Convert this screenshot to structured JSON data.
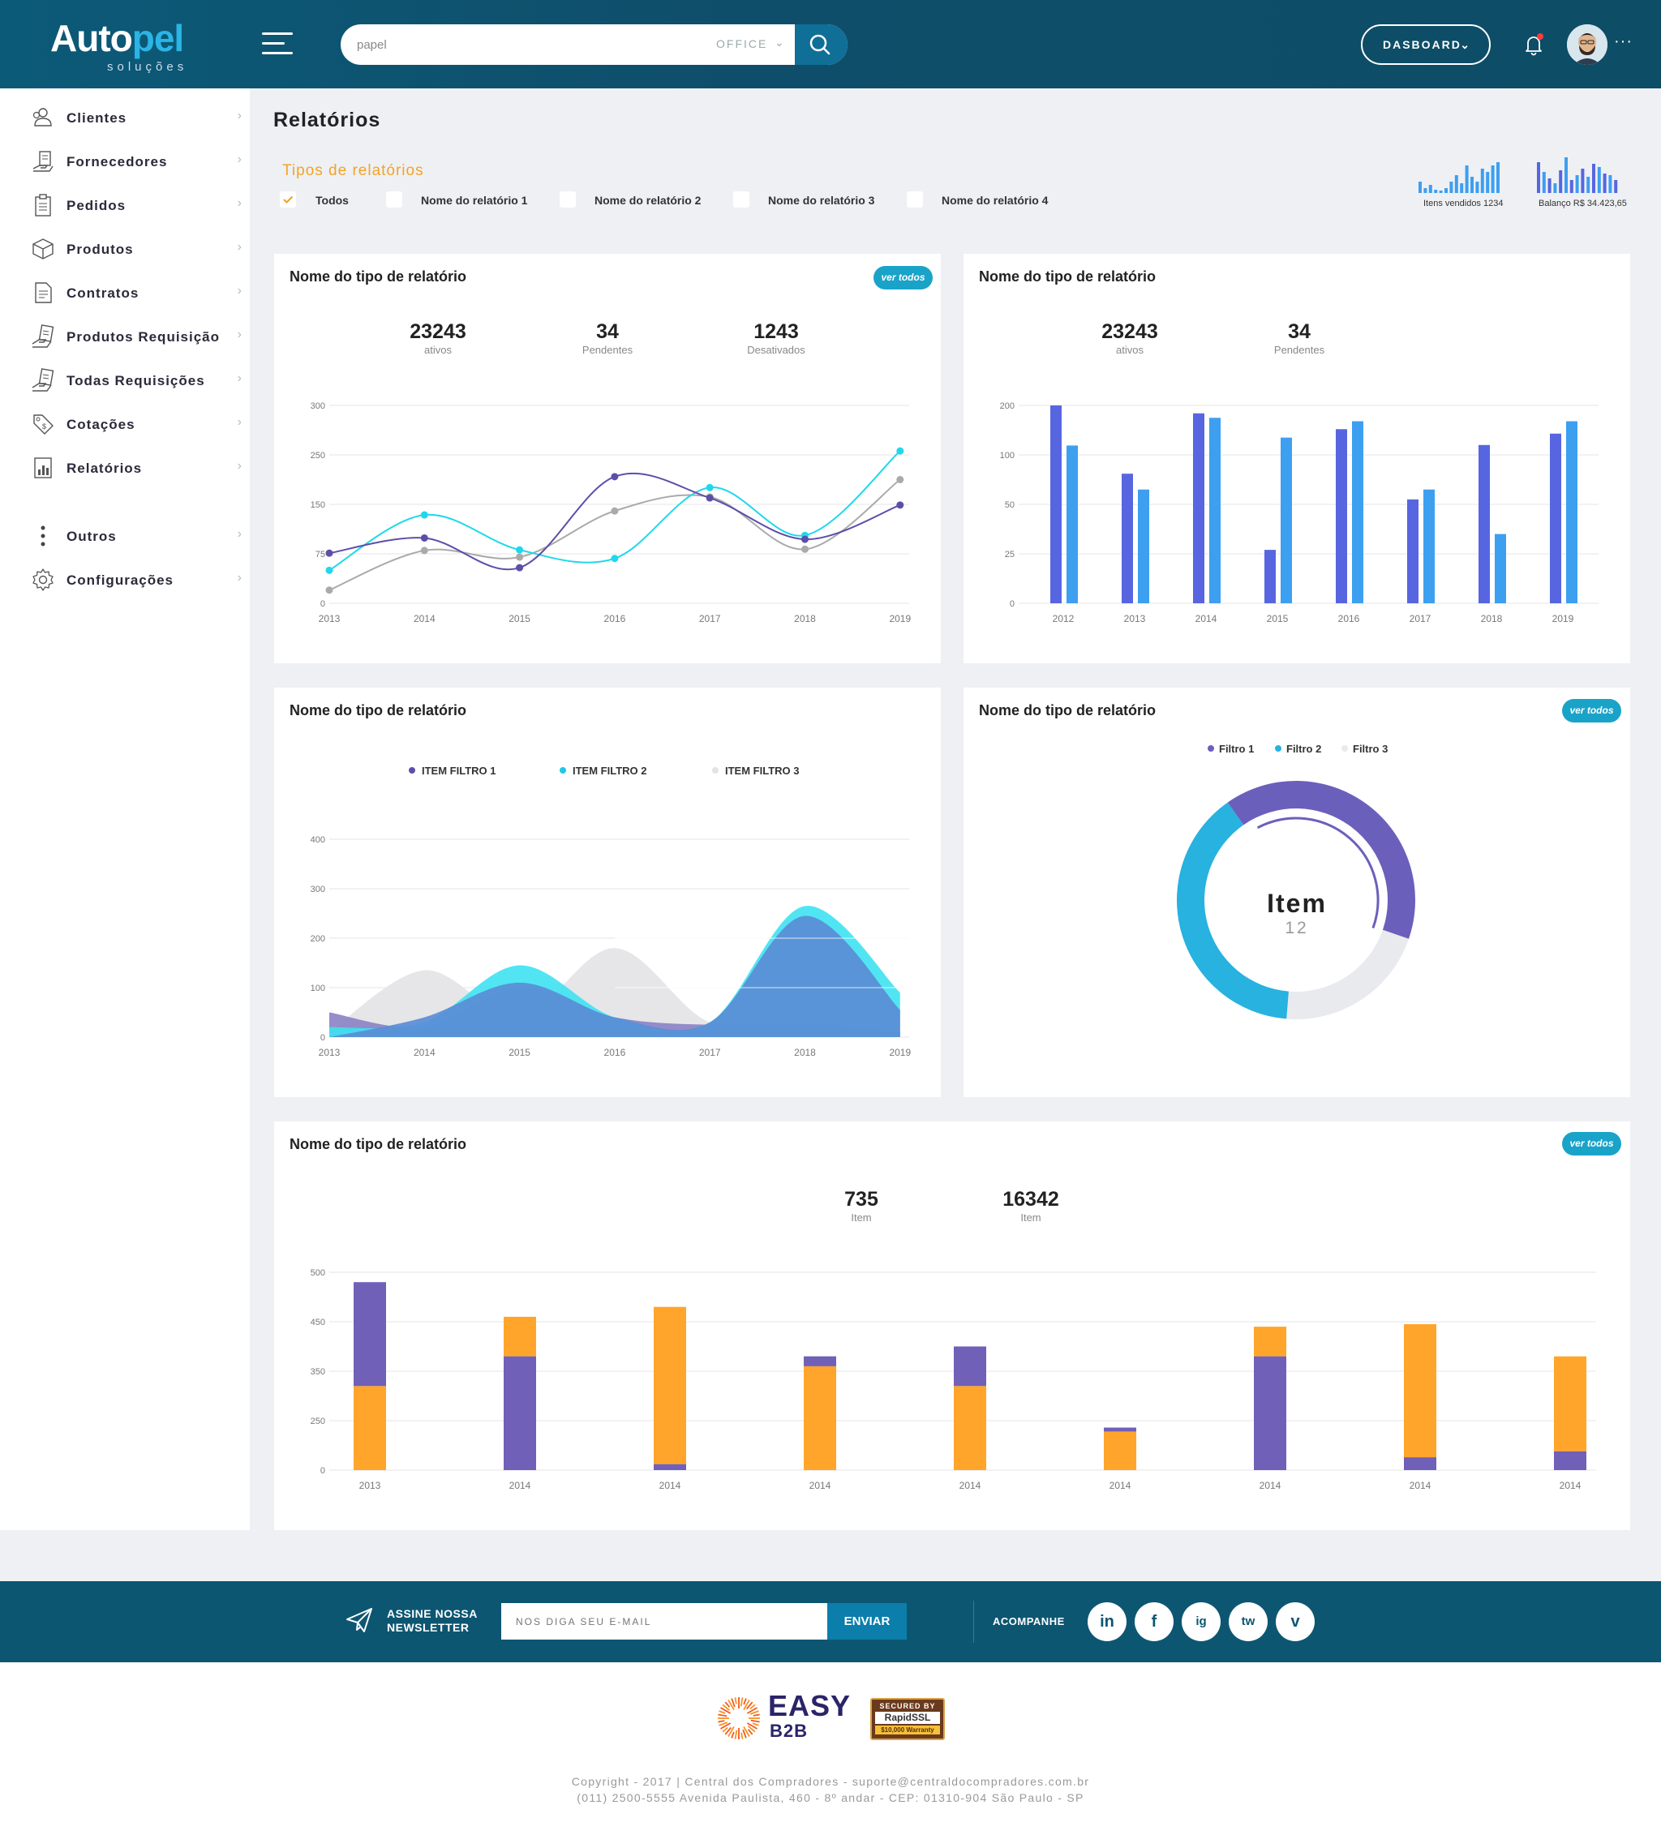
{
  "header": {
    "logo_part1": "Auto",
    "logo_part2": "pel",
    "logo_sub": "soluções",
    "search_value": "papel",
    "search_category": "OFFICE",
    "dashboard_label": "DASBOARD",
    "colors": {
      "primary": "#0b5a78",
      "accent": "#2bb4e6"
    }
  },
  "sidebar": {
    "items": [
      {
        "label": "Clientes",
        "icon": "users-icon"
      },
      {
        "label": "Fornecedores",
        "icon": "supplier-icon"
      },
      {
        "label": "Pedidos",
        "icon": "clipboard-icon"
      },
      {
        "label": "Produtos",
        "icon": "box-icon"
      },
      {
        "label": "Contratos",
        "icon": "document-icon"
      },
      {
        "label": "Produtos Requisição",
        "icon": "hand-document-icon"
      },
      {
        "label": "Todas Requisições",
        "icon": "hand-document-icon"
      },
      {
        "label": "Cotações",
        "icon": "price-tag-icon"
      },
      {
        "label": "Relatórios",
        "icon": "report-icon"
      },
      {
        "label": "Outros",
        "icon": "vertical-dots-icon"
      },
      {
        "label": "Configurações",
        "icon": "gear-icon"
      }
    ]
  },
  "page": {
    "title": "Relatórios",
    "types_label": "Tipos de relatórios",
    "filters": [
      {
        "label": "Todos",
        "checked": true
      },
      {
        "label": "Nome do relatório 1",
        "checked": false
      },
      {
        "label": "Nome do relatório 2",
        "checked": false
      },
      {
        "label": "Nome do relatório 3",
        "checked": false
      },
      {
        "label": "Nome do relatório 4",
        "checked": false
      }
    ],
    "spark1_label": "Itens vendidos 1234",
    "spark2_label": "Balanço R$ 34.423,65",
    "ver_todos": "ver todos"
  },
  "cards": {
    "c1": {
      "title": "Nome do tipo de relatório",
      "stats": [
        {
          "n": "23243",
          "l": "ativos"
        },
        {
          "n": "34",
          "l": "Pendentes"
        },
        {
          "n": "1243",
          "l": "Desativados"
        }
      ]
    },
    "c2": {
      "title": "Nome do tipo de relatório",
      "stats": [
        {
          "n": "23243",
          "l": "ativos"
        },
        {
          "n": "34",
          "l": "Pendentes"
        }
      ]
    },
    "c3": {
      "title": "Nome do tipo de relatório"
    },
    "c4": {
      "title": "Nome do tipo de relatório",
      "center_title": "Item",
      "center_value": "12"
    },
    "c5": {
      "title": "Nome do tipo de relatório",
      "stats": [
        {
          "n": "735",
          "l": "Item"
        },
        {
          "n": "16342",
          "l": "Item"
        }
      ]
    }
  },
  "chart_data": [
    {
      "type": "line",
      "categories": [
        "2013",
        "2014",
        "2015",
        "2016",
        "2017",
        "2018",
        "2019"
      ],
      "yticks": [
        "0",
        "75",
        "150",
        "250",
        "300"
      ],
      "series": [
        {
          "name": "dark",
          "color": "#5d4ea8",
          "values": [
            76,
            99,
            54,
            206,
            163,
            97,
            149
          ]
        },
        {
          "name": "cyan",
          "color": "#1fd8ec",
          "values": [
            50,
            134,
            81,
            68,
            184,
            103,
            254
          ]
        },
        {
          "name": "gray",
          "color": "#aaaaaa",
          "values": [
            20,
            80,
            70,
            140,
            165,
            82,
            200
          ]
        }
      ]
    },
    {
      "type": "bar",
      "categories": [
        "2012",
        "2013",
        "2014",
        "2015",
        "2016",
        "2017",
        "2018",
        "2019"
      ],
      "yticks": [
        "0",
        "25",
        "50",
        "100",
        "200"
      ],
      "series": [
        {
          "name": "A",
          "color": "#5766e0",
          "values": [
            200,
            81,
            184,
            27,
            152,
            55,
            120,
            143
          ]
        },
        {
          "name": "B",
          "color": "#3d9ff0",
          "values": [
            119,
            65,
            175,
            135,
            168,
            65,
            35,
            168
          ]
        }
      ]
    },
    {
      "type": "area",
      "categories": [
        "2013",
        "2014",
        "2015",
        "2016",
        "2017",
        "2018",
        "2019"
      ],
      "yticks": [
        "0",
        "100",
        "200",
        "300",
        "400"
      ],
      "legend": [
        "ITEM FILTRO 1",
        "ITEM FILTRO 2",
        "ITEM FILTRO 3"
      ],
      "series": [
        {
          "name": "ITEM FILTRO 3",
          "color": "#e3e3e6",
          "values": [
            10,
            135,
            40,
            180,
            30,
            30,
            20
          ]
        },
        {
          "name": "ITEM FILTRO 1",
          "color": "#8a82c4",
          "values": [
            50,
            20,
            100,
            40,
            25,
            30,
            10
          ]
        },
        {
          "name": "ITEM FILTRO 2",
          "color": "#3ee2f2",
          "values": [
            20,
            30,
            145,
            40,
            30,
            265,
            90
          ]
        },
        {
          "name": "main",
          "color": "#5a8dd6",
          "values": [
            0,
            40,
            110,
            40,
            30,
            245,
            55
          ]
        }
      ]
    },
    {
      "type": "pie",
      "legend": [
        "Filtro 1",
        "Filtro 2",
        "Filtro 3"
      ],
      "series": [
        {
          "name": "Filtro 1",
          "color": "#6b5fbc",
          "value": 40
        },
        {
          "name": "Filtro 3",
          "color": "#e8eaee",
          "value": 21
        },
        {
          "name": "Filtro 2",
          "color": "#27b2e0",
          "value": 39
        }
      ]
    },
    {
      "type": "bar",
      "stacked": true,
      "categories": [
        "2013",
        "2014",
        "2014",
        "2014",
        "2014",
        "2014",
        "2014",
        "2014",
        "2014"
      ],
      "yticks": [
        "0",
        "250",
        "350",
        "450",
        "500"
      ],
      "series": [
        {
          "name": "orange",
          "color": "#ffa52b",
          "values": [
            [
              0,
              320
            ],
            [
              380,
              455
            ],
            [
              30,
              465
            ],
            [
              0,
              360
            ],
            [
              0,
              320
            ],
            [
              0,
              195
            ],
            [
              380,
              440
            ],
            [
              65,
              445
            ],
            [
              95,
              380
            ]
          ]
        },
        {
          "name": "purple",
          "color": "#7160b8",
          "values": [
            [
              320,
              490
            ],
            [
              0,
              380
            ],
            [
              0,
              30
            ],
            [
              360,
              380
            ],
            [
              320,
              400
            ],
            [
              195,
              215
            ],
            [
              0,
              380
            ],
            [
              0,
              65
            ],
            [
              0,
              95
            ]
          ]
        }
      ]
    }
  ],
  "footer": {
    "newsletter_line1": "ASSINE NOSSA",
    "newsletter_line2": "NEWSLETTER",
    "email_placeholder": "NOS DIGA SEU E-MAIL",
    "send_label": "ENVIAR",
    "follow_label": "ACOMPANHE",
    "socials": [
      "in",
      "f",
      "ig",
      "tw",
      "v"
    ],
    "easy1": "EASY",
    "easy2": "B2B",
    "ssl1": "SECURED BY",
    "ssl2": "RapidSSL",
    "ssl3": "$10,000 Warranty",
    "copyright_line1": "Copyright - 2017 | Central dos Compradores - suporte@centraldocompradores.com.br",
    "copyright_line2": "(011) 2500-5555 Avenida Paulista, 460 - 8º andar - CEP: 01310-904 São Paulo - SP"
  }
}
